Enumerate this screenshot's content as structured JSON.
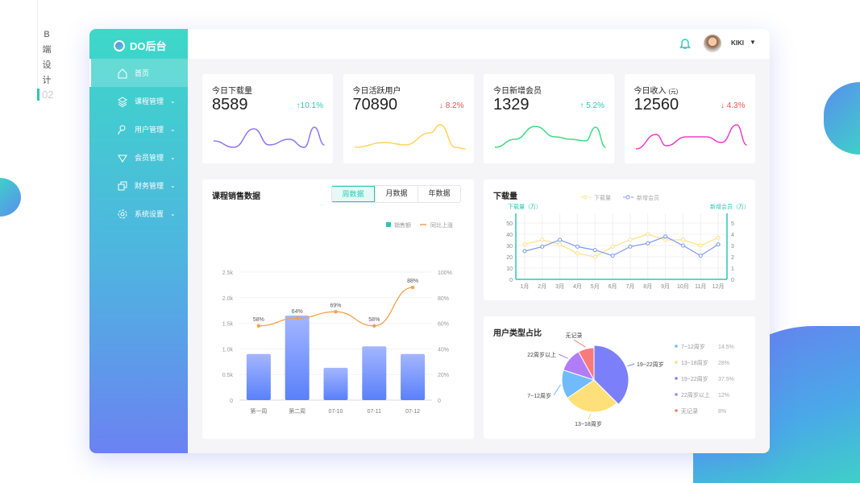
{
  "side_caption": {
    "chars": [
      "B",
      "端",
      "设",
      "计"
    ],
    "page": "02"
  },
  "app": {
    "name": "DO后台"
  },
  "sidebar": {
    "items": [
      {
        "label": "首页",
        "icon": "home-icon"
      },
      {
        "label": "课程管理",
        "icon": "layers-icon"
      },
      {
        "label": "用户管理",
        "icon": "user-icon"
      },
      {
        "label": "会员管理",
        "icon": "diamond-icon"
      },
      {
        "label": "财务管理",
        "icon": "copy-icon"
      },
      {
        "label": "系统设置",
        "icon": "gear-icon"
      }
    ]
  },
  "header": {
    "username": "KIKI"
  },
  "stats": [
    {
      "title": "今日下载量",
      "unit": "",
      "value": "8589",
      "delta": "↑10.1%",
      "trend": "up",
      "color": "#8a78f0"
    },
    {
      "title": "今日活跃用户",
      "unit": "",
      "value": "70890",
      "delta": "↓ 8.2%",
      "trend": "down",
      "color": "#ffd45c"
    },
    {
      "title": "今日新增会员",
      "unit": "",
      "value": "1329",
      "delta": "↑ 5.2%",
      "trend": "up",
      "color": "#3ddc84"
    },
    {
      "title": "今日收入",
      "unit": "(元)",
      "value": "12560",
      "delta": "↓ 4.3%",
      "trend": "down",
      "color": "#f03cc8"
    }
  ],
  "colors": {
    "up": "#2cc7b5",
    "down": "#f05050",
    "accent": "#2cc7b5"
  },
  "sales": {
    "title": "课程销售数据",
    "tabs": [
      "周数据",
      "月数据",
      "年数据"
    ],
    "active_tab": 0
  },
  "chart_data": [
    {
      "type": "bar",
      "title": "课程销售数据",
      "categories": [
        "第一周",
        "第二周",
        "07-10",
        "07-11",
        "07-12"
      ],
      "series": [
        {
          "name": "销售额",
          "type": "bar",
          "values": [
            900,
            1650,
            630,
            1050,
            900
          ]
        },
        {
          "name": "同比上涨",
          "type": "line",
          "values": [
            58,
            64,
            69,
            58,
            88
          ],
          "labels": [
            "58%",
            "64%",
            "69%",
            "58%",
            "88%"
          ]
        }
      ],
      "y_ticks": [
        "0",
        "0.5k",
        "1.0k",
        "1.5k",
        "2.0k",
        "2.5k"
      ],
      "ylim": [
        0,
        2500
      ],
      "y2_ticks": [
        "0",
        "20%",
        "40%",
        "60%",
        "80%",
        "100%"
      ],
      "y2lim": [
        0,
        100
      ],
      "legend": "top-right",
      "grid": true
    },
    {
      "type": "line",
      "title": "下载量",
      "categories": [
        "1月",
        "2月",
        "3月",
        "4月",
        "5月",
        "6月",
        "7月",
        "8月",
        "9月",
        "10月",
        "11月",
        "12月"
      ],
      "series": [
        {
          "name": "下载量",
          "values": [
            31,
            35,
            31,
            23,
            20,
            29,
            35,
            40,
            35,
            35,
            30,
            37
          ],
          "color": "#ffe08a"
        },
        {
          "name": "新增会员",
          "values": [
            2.5,
            2.9,
            3.5,
            2.9,
            2.6,
            2.1,
            2.9,
            3.2,
            3.8,
            3.0,
            2.1,
            3.1
          ],
          "color": "#7b96f5"
        }
      ],
      "ylabel": "下载量（万）",
      "y2label": "新增会员（万）",
      "y_ticks": [
        "0",
        "10",
        "20",
        "30",
        "40",
        "50"
      ],
      "ylim": [
        0,
        55
      ],
      "y2_ticks": [
        "0",
        "1",
        "2",
        "3",
        "4",
        "5"
      ],
      "y2lim": [
        0,
        5.5
      ],
      "legend": "top",
      "grid": true
    },
    {
      "type": "pie",
      "title": "用户类型占比",
      "slices": [
        {
          "label": "19~22周岁",
          "value": 37.5,
          "pct": "37.5%",
          "color": "#7b80fa"
        },
        {
          "label": "13~18周岁",
          "value": 28,
          "pct": "28%",
          "color": "#fde07a"
        },
        {
          "label": "7~12周岁",
          "value": 14.5,
          "pct": "14.5%",
          "color": "#70bcfa"
        },
        {
          "label": "22周岁以上",
          "value": 12,
          "pct": "12%",
          "color": "#b07cf8"
        },
        {
          "label": "无记录",
          "value": 8,
          "pct": "8%",
          "color": "#f87a7a"
        }
      ],
      "legend_order": [
        2,
        1,
        0,
        3,
        4
      ],
      "legend": "right"
    }
  ]
}
